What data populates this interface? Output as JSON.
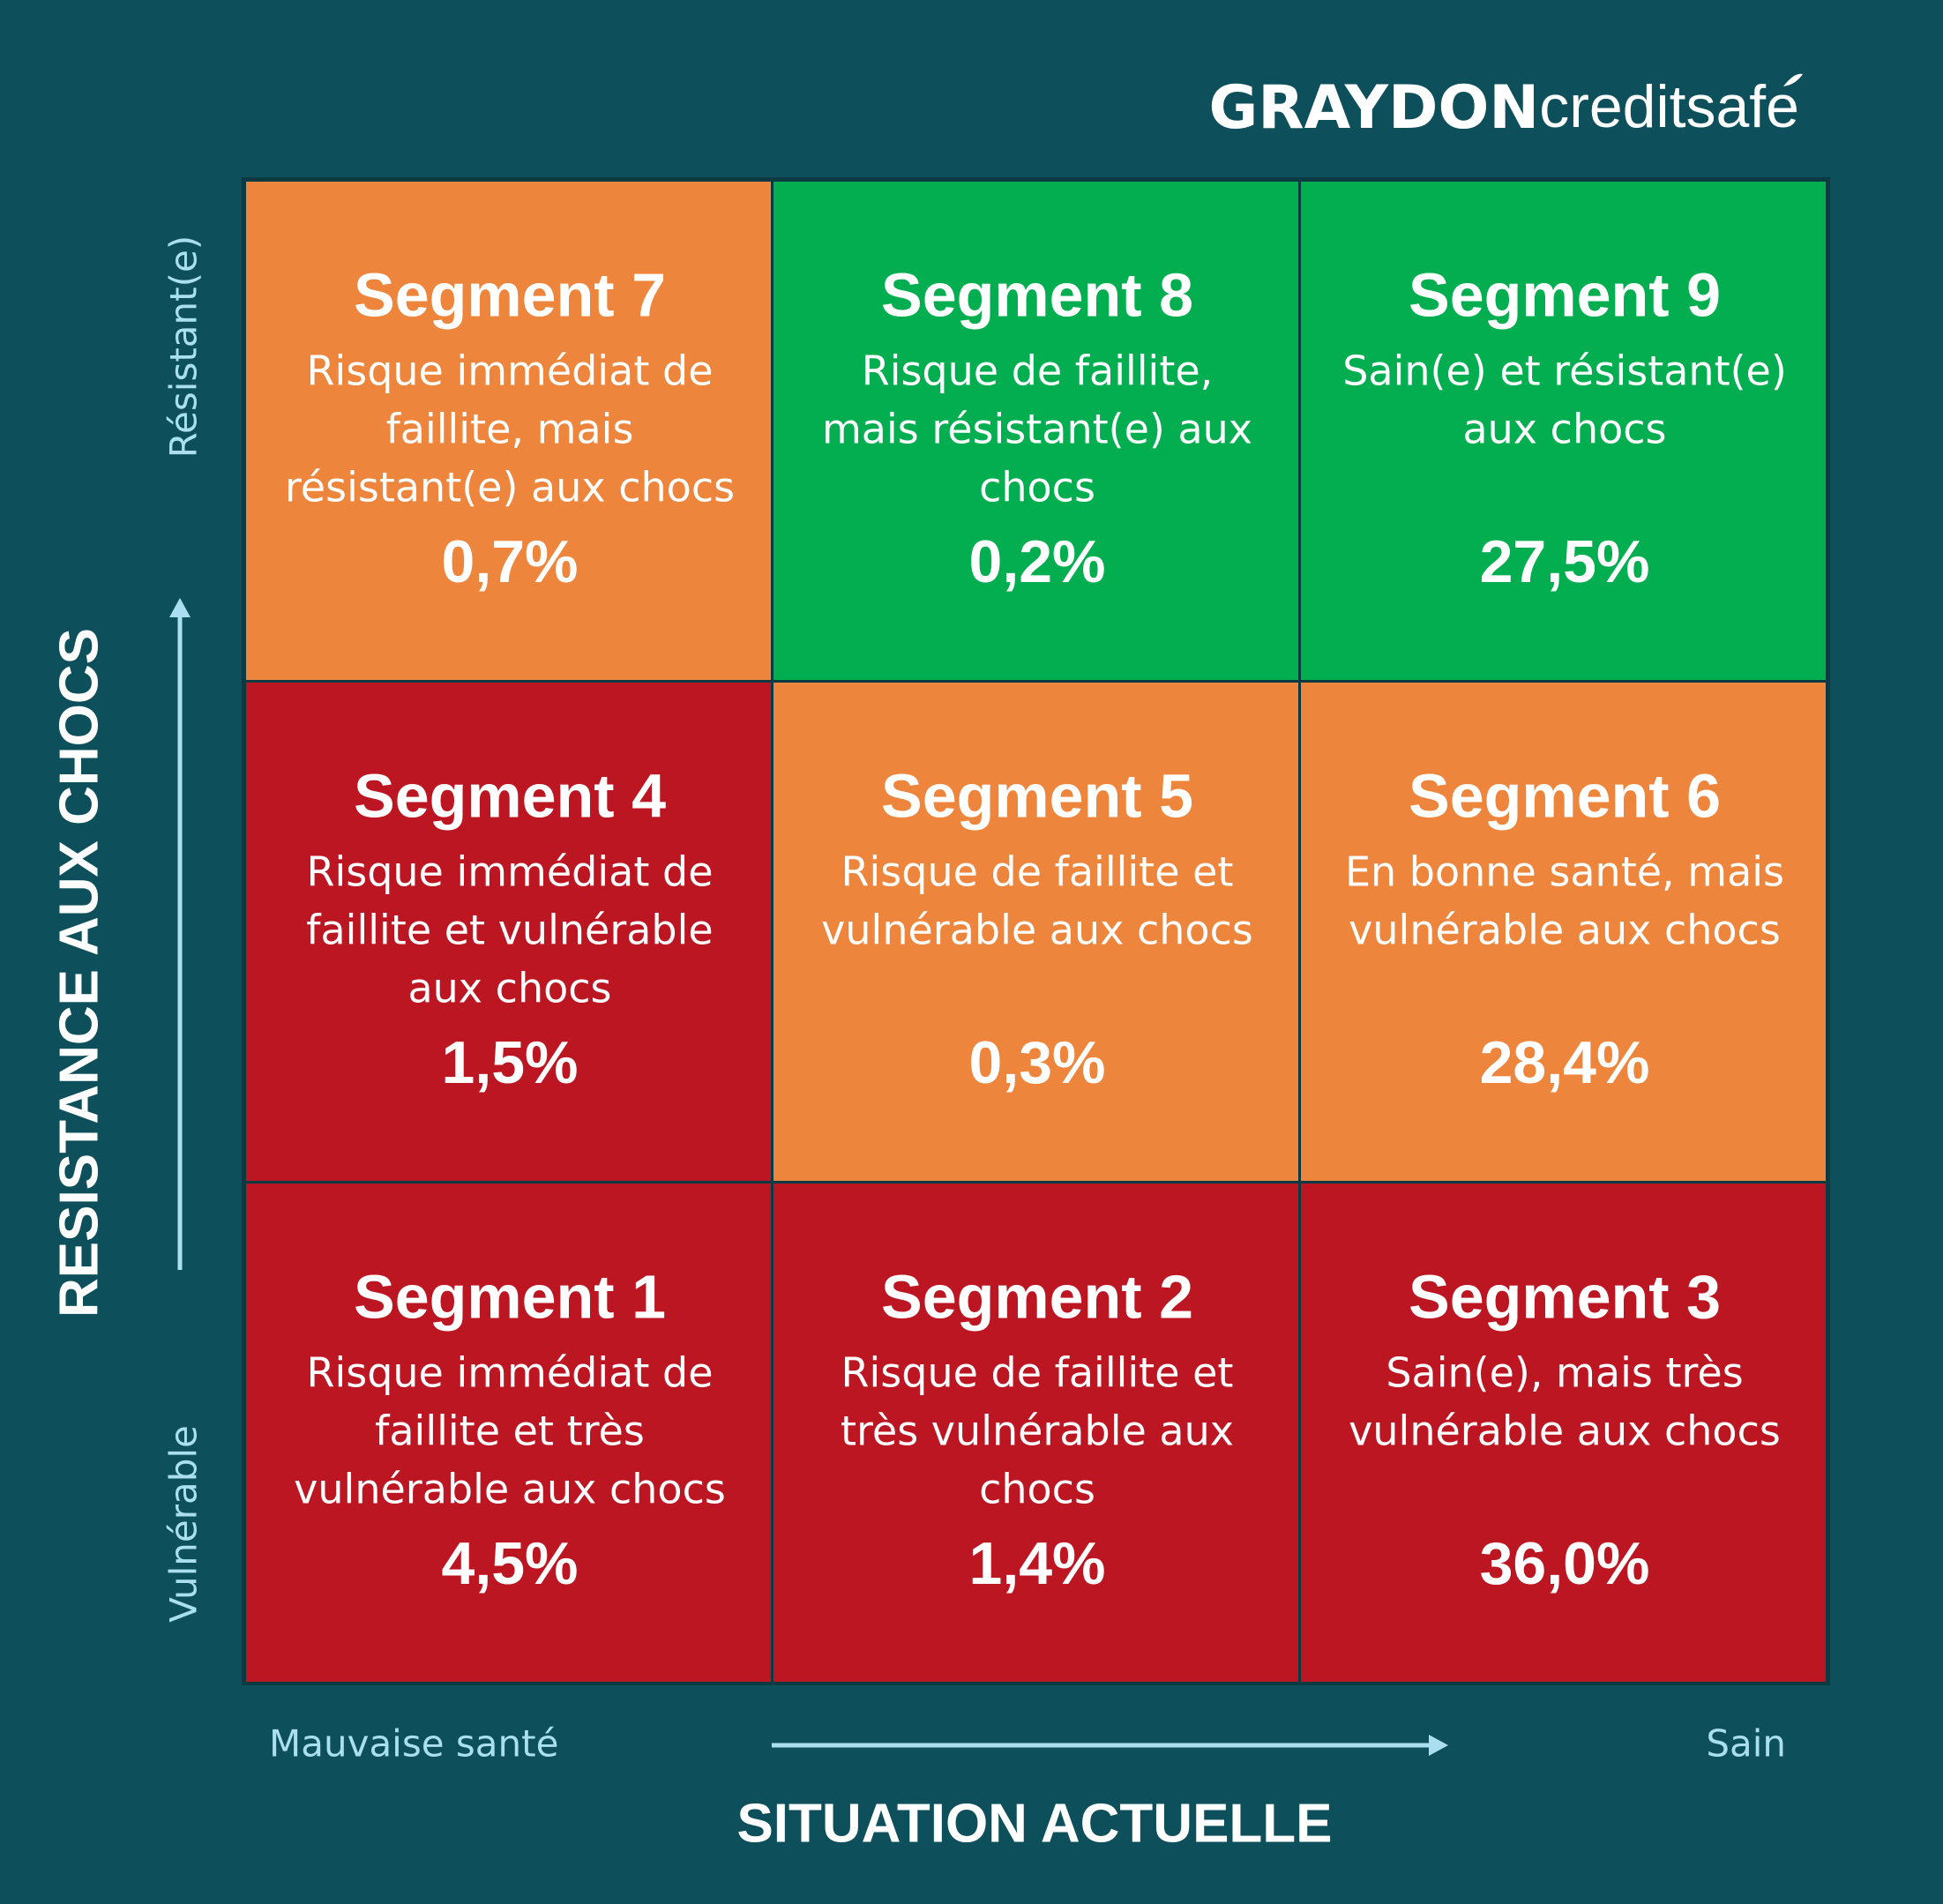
{
  "logo": {
    "bold": "GRAYDON",
    "light": "creditsafe"
  },
  "y_axis": {
    "title": "RESISTANCE AUX CHOCS",
    "top": "Résistant(e)",
    "bottom": "Vulnérable"
  },
  "x_axis": {
    "title": "SITUATION ACTUELLE",
    "left": "Mauvaise santé",
    "right": "Sain"
  },
  "cells": [
    {
      "title": "Segment 7",
      "lines": [
        "Risque immédiat de",
        "faillite, mais",
        "résistant(e) aux chocs"
      ],
      "value": "0,7%",
      "color": "#ed853c"
    },
    {
      "title": "Segment 8",
      "lines": [
        "Risque de faillite,",
        "mais résistant(e) aux",
        "chocs"
      ],
      "value": "0,2%",
      "color": "#02ae4f"
    },
    {
      "title": "Segment 9",
      "lines": [
        "Sain(e) et résistant(e)",
        "aux chocs"
      ],
      "value": "27,5%",
      "color": "#02ae4f"
    },
    {
      "title": "Segment 4",
      "lines": [
        "Risque immédiat de",
        "faillite et vulnérable",
        "aux chocs"
      ],
      "value": "1,5%",
      "color": "#bb1622"
    },
    {
      "title": "Segment 5",
      "lines": [
        "Risque de faillite et",
        "vulnérable aux chocs"
      ],
      "value": "0,3%",
      "color": "#ed853c"
    },
    {
      "title": "Segment 6",
      "lines": [
        "En bonne santé, mais",
        "vulnérable aux chocs"
      ],
      "value": "28,4%",
      "color": "#ed853c"
    },
    {
      "title": "Segment 1",
      "lines": [
        "Risque immédiat de",
        "faillite et très",
        "vulnérable aux chocs"
      ],
      "value": "4,5%",
      "color": "#bb1622"
    },
    {
      "title": "Segment 2",
      "lines": [
        "Risque de faillite et",
        "très vulnérable aux",
        "chocs"
      ],
      "value": "1,4%",
      "color": "#bb1622"
    },
    {
      "title": "Segment 3",
      "lines": [
        "Sain(e), mais très",
        "vulnérable aux chocs"
      ],
      "value": "36,0%",
      "color": "#bb1622"
    }
  ]
}
